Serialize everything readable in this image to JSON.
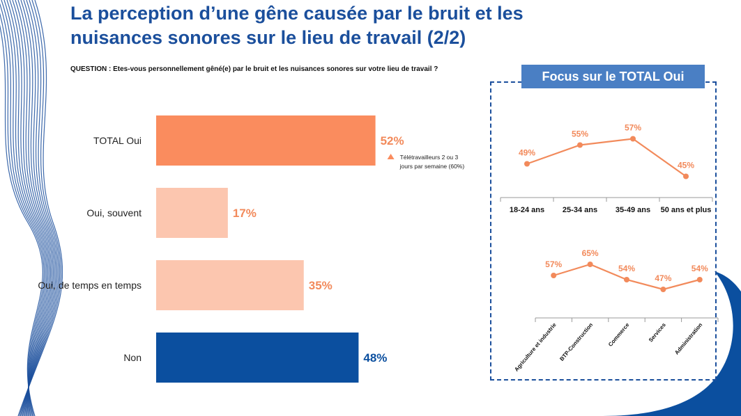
{
  "page": {
    "title_line1": "La perception d’une gêne causée par le bruit et les",
    "title_line2": "nuisances sonores sur le lieu de travail (2/2)",
    "question": "QUESTION : Etes-vous personnellement gêné(e) par le bruit et les nuisances sonores sur votre lieu de travail ?",
    "focus_header": "Focus sur le TOTAL Oui"
  },
  "colors": {
    "title": "#1b4f9c",
    "orange_dark": "#fa8c5e",
    "orange_light": "#fcc6af",
    "blue": "#0b4f9f",
    "focus_line": "#f28a5b"
  },
  "chart_data": [
    {
      "type": "bar",
      "orientation": "horizontal",
      "categories": [
        "TOTAL Oui",
        "Oui, souvent",
        "Oui, de temps en temps",
        "Non"
      ],
      "values": [
        52,
        17,
        35,
        48
      ],
      "labels": [
        "52%",
        "17%",
        "35%",
        "48%"
      ],
      "bar_colors": [
        "#fa8c5e",
        "#fcc6af",
        "#fcc6af",
        "#0b4f9f"
      ],
      "label_colors": [
        "#f28a5b",
        "#f28a5b",
        "#f28a5b",
        "#0b4f9f"
      ],
      "xlim": [
        0,
        100
      ],
      "annotation": {
        "marker": "triangle-up",
        "text_line1": "Télétravailleurs 2 ou 3",
        "text_line2": "jours par semaine (60%)"
      }
    },
    {
      "type": "line",
      "categories": [
        "18-24 ans",
        "25-34 ans",
        "35-49 ans",
        "50 ans et plus"
      ],
      "values": [
        49,
        55,
        57,
        45
      ],
      "labels": [
        "49%",
        "55%",
        "57%",
        "45%"
      ]
    },
    {
      "type": "line",
      "categories": [
        "Agriculture et industrie",
        "BTP-Construction",
        "Commerce",
        "Services",
        "Administration"
      ],
      "values": [
        57,
        65,
        54,
        47,
        54
      ],
      "labels": [
        "57%",
        "65%",
        "54%",
        "47%",
        "54%"
      ]
    }
  ]
}
